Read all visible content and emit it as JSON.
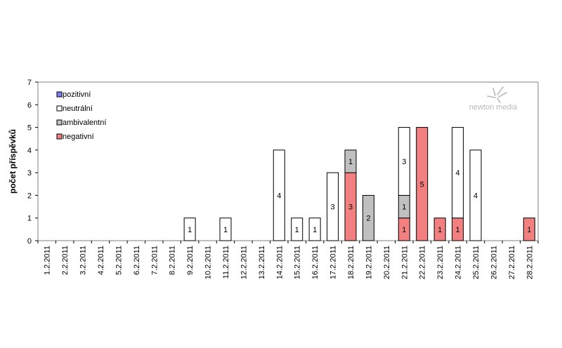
{
  "chart_data": {
    "type": "bar",
    "stacked": true,
    "ylabel": "počet příspěvků",
    "xlabel": "",
    "ylim": [
      0,
      7
    ],
    "yticks": [
      0,
      1,
      2,
      3,
      4,
      5,
      6,
      7
    ],
    "grid": false,
    "legend_position": "top-left",
    "categories": [
      "1.2.2011",
      "2.2.2011",
      "3.2.2011",
      "4.2.2011",
      "5.2.2011",
      "6.2.2011",
      "7.2.2011",
      "8.2.2011",
      "9.2.2011",
      "10.2.2011",
      "11.2.2011",
      "12.2.2011",
      "13.2.2011",
      "14.2.2011",
      "15.2.2011",
      "16.2.2011",
      "17.2.2011",
      "18.2.2011",
      "19.2.2011",
      "20.2.2011",
      "21.2.2011",
      "22.2.2011",
      "23.2.2011",
      "24.2.2011",
      "25.2.2011",
      "26.2.2011",
      "27.2.2011",
      "28.2.2011"
    ],
    "series": [
      {
        "name": "negativní",
        "color": "#f28080",
        "values": [
          0,
          0,
          0,
          0,
          0,
          0,
          0,
          0,
          0,
          0,
          0,
          0,
          0,
          0,
          0,
          0,
          0,
          3,
          0,
          0,
          1,
          5,
          1,
          1,
          0,
          0,
          0,
          1
        ]
      },
      {
        "name": "ambivalentní",
        "color": "#c0c0c0",
        "values": [
          0,
          0,
          0,
          0,
          0,
          0,
          0,
          0,
          0,
          0,
          0,
          0,
          0,
          0,
          0,
          0,
          0,
          1,
          2,
          0,
          1,
          0,
          0,
          0,
          0,
          0,
          0,
          0
        ]
      },
      {
        "name": "neutrální",
        "color": "#ffffff",
        "values": [
          0,
          0,
          0,
          0,
          0,
          0,
          0,
          0,
          1,
          0,
          1,
          0,
          0,
          4,
          1,
          1,
          3,
          0,
          0,
          0,
          3,
          0,
          0,
          4,
          4,
          0,
          0,
          0
        ]
      },
      {
        "name": "pozitivní",
        "color": "#8080f0",
        "values": [
          0,
          0,
          0,
          0,
          0,
          0,
          0,
          0,
          0,
          0,
          0,
          0,
          0,
          0,
          0,
          0,
          0,
          0,
          0,
          0,
          0,
          0,
          0,
          0,
          0,
          0,
          0,
          0
        ]
      }
    ],
    "legend_order": [
      "pozitivní",
      "neutrální",
      "ambivalentní",
      "negativní"
    ]
  },
  "logo": {
    "text": "newton media",
    "icon": "bird-logo-icon"
  }
}
